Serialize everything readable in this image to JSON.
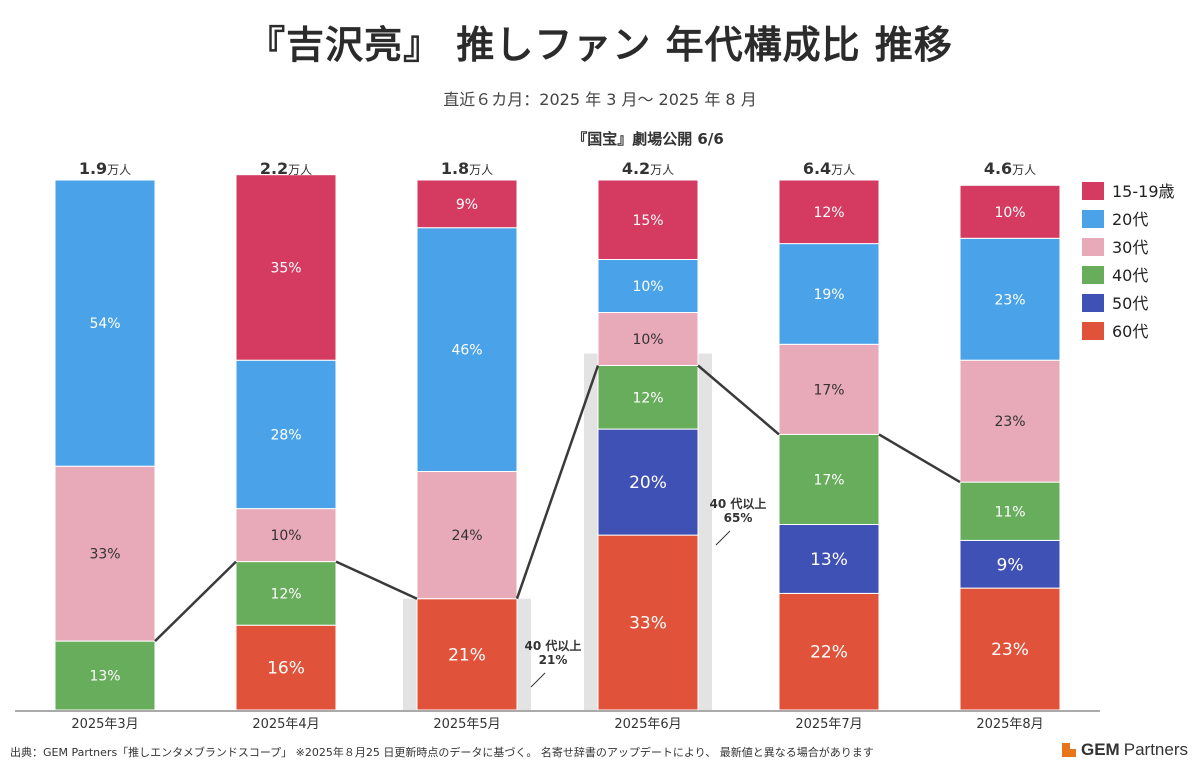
{
  "title": "『吉沢亮』 推しファン 年代構成比 推移",
  "subtitle": "直近６カ月：2025 年 3 月〜 2025 年 8 月",
  "footer": "出典：GEM Partners「推しエンタメブランドスコープ」 ※2025年８月25 日更新時点のデータに基づく。 名寄せ辞書のアップデートにより、 最新値と異なる場合があります",
  "brand": {
    "bold": "GEM",
    "rest": "Partners",
    "icon": "gem-partners-logo"
  },
  "chart_data": {
    "type": "bar",
    "stacked": true,
    "normalized_percent": true,
    "categories": [
      "2025年3月",
      "2025年4月",
      "2025年5月",
      "2025年6月",
      "2025年7月",
      "2025年8月"
    ],
    "totals": [
      {
        "value": "1.9",
        "unit": "万人"
      },
      {
        "value": "2.2",
        "unit": "万人"
      },
      {
        "value": "1.8",
        "unit": "万人"
      },
      {
        "value": "4.2",
        "unit": "万人"
      },
      {
        "value": "6.4",
        "unit": "万人"
      },
      {
        "value": "4.6",
        "unit": "万人"
      }
    ],
    "series": [
      {
        "name": "60代",
        "color": "#e0533a",
        "values": [
          0,
          16,
          21,
          33,
          22,
          23
        ],
        "label_color": "#ffffff",
        "label_size": "large"
      },
      {
        "name": "50代",
        "color": "#4051b5",
        "values": [
          0,
          0,
          0,
          20,
          13,
          9
        ],
        "label_color": "#ffffff",
        "label_size": "large"
      },
      {
        "name": "40代",
        "color": "#67ad5b",
        "values": [
          13,
          12,
          0,
          12,
          17,
          11
        ],
        "label_color": "#ffffff",
        "label_size": "small"
      },
      {
        "name": "30代",
        "color": "#e8a9b8",
        "values": [
          33,
          10,
          24,
          10,
          17,
          23
        ],
        "label_color": "#333333",
        "label_size": "small"
      },
      {
        "name": "20代",
        "color": "#4aa3e8",
        "values": [
          54,
          28,
          46,
          10,
          19,
          23
        ],
        "label_color": "#ffffff",
        "label_size": "small"
      },
      {
        "name": "15-19歳",
        "color": "#d53a60",
        "values": [
          0,
          35,
          9,
          15,
          12,
          10
        ],
        "label_color": "#ffffff",
        "label_size": "small"
      }
    ],
    "legend_order": [
      "15-19歳",
      "20代",
      "30代",
      "40代",
      "50代",
      "60代"
    ],
    "legend_position": "right",
    "annotations": [
      {
        "text": "『国宝』劇場公開 6/6",
        "category": "2025年6月",
        "type": "event"
      },
      {
        "text_line1": "40 代以上",
        "text_line2": "21%",
        "category": "2025年5月",
        "type": "callout"
      },
      {
        "text_line1": "40 代以上",
        "text_line2": "65%",
        "category": "2025年6月",
        "type": "callout"
      }
    ],
    "highlighted_categories": [
      "2025年5月",
      "2025年6月"
    ],
    "connector_line": "boundary between 30代 and 40代",
    "ylim": [
      0,
      100
    ],
    "grid": false
  }
}
